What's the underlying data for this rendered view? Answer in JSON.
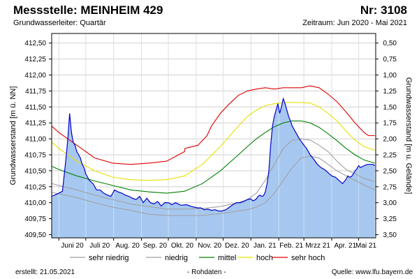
{
  "header": {
    "title_left": "Messstelle: MEINHEIM 429",
    "title_right": "Nr: 3108",
    "aquifer": "Grundwasserleiter: Quartär",
    "period": "Zeitraum: Jun 2020 - Mai 2021"
  },
  "footer": {
    "created": "erstellt:  21.05.2021",
    "raw": "- Rohdaten -",
    "source": "Quelle:  www.lfu.bayern.de"
  },
  "colors": {
    "sehr_niedrig": "#a0a0a0",
    "niedrig": "#a0a0a0",
    "mittel": "#008000",
    "hoch": "#e8e000",
    "sehr_hoch": "#e00000",
    "area_fill": "#a6c8f0",
    "measured_line": "#0000cc"
  },
  "chart_data": {
    "type": "area",
    "ylabel": "Grundwasserstand [m ü. NN]",
    "ylabel_right": "Grundwasserstand [m u. Gelände]",
    "ylim": [
      409.45,
      412.65
    ],
    "yticks": [
      "409,50",
      "409,75",
      "410,00",
      "410,25",
      "410,50",
      "410,75",
      "411,00",
      "411,25",
      "411,50",
      "411,75",
      "412,00",
      "412,25",
      "412,50"
    ],
    "yticks_values": [
      409.5,
      409.75,
      410.0,
      410.25,
      410.5,
      410.75,
      411.0,
      411.25,
      411.5,
      411.75,
      412.0,
      412.25,
      412.5
    ],
    "yticks_right": [
      "3,50",
      "3,25",
      "3,00",
      "2,75",
      "2,50",
      "2,25",
      "2,00",
      "1,75",
      "1,50",
      "1,25",
      "1,00",
      "0,75",
      "0,50"
    ],
    "yticks_right_depth": [
      3.5,
      3.25,
      3.0,
      2.75,
      2.5,
      2.25,
      2.0,
      1.75,
      1.5,
      1.25,
      1.0,
      0.75,
      0.5
    ],
    "ground_level": 413.0,
    "xlim": [
      0,
      353
    ],
    "x_unit": "days since 2020-06-01",
    "xtick_positions": [
      0,
      30,
      61,
      92,
      122,
      153,
      183,
      214,
      245,
      273,
      304,
      334
    ],
    "month_labels": [
      "Juni 20",
      "Juli 20",
      "Aug. 20",
      "Sep. 20",
      "Okt. 20",
      "Nov. 20",
      "Dez. 20",
      "Jan. 21",
      "Feb. 21",
      "Mrzz 21",
      "Apr. 21",
      "Mai 21"
    ],
    "legend_items": [
      "sehr niedrig",
      "niedrig",
      "mittel",
      "hoch",
      "sehr hoch"
    ],
    "grid": true,
    "series": [
      {
        "name": "Rohdaten",
        "x": [
          -8,
          0,
          4,
          8,
          10,
          12,
          14,
          16,
          18,
          20,
          22,
          24,
          26,
          28,
          30,
          34,
          38,
          42,
          46,
          50,
          54,
          58,
          62,
          66,
          70,
          74,
          78,
          82,
          86,
          90,
          94,
          98,
          102,
          106,
          110,
          114,
          118,
          122,
          126,
          130,
          136,
          142,
          148,
          154,
          158,
          162,
          166,
          170,
          174,
          178,
          182,
          186,
          190,
          194,
          198,
          202,
          206,
          210,
          214,
          216,
          218,
          220,
          222,
          224,
          226,
          228,
          230,
          232,
          234,
          236,
          238,
          240,
          242,
          244,
          246,
          248,
          250,
          252,
          254,
          256,
          258,
          260,
          264,
          268,
          272,
          276,
          280,
          284,
          288,
          292,
          296,
          300,
          304,
          308,
          312,
          316,
          318,
          320,
          322,
          324,
          326,
          328,
          330,
          332,
          334,
          336,
          340,
          344,
          348,
          350,
          352
        ],
        "y": [
          410.1,
          410.15,
          410.18,
          410.7,
          411.0,
          411.4,
          411.1,
          410.95,
          410.9,
          410.8,
          410.75,
          410.7,
          410.6,
          410.55,
          410.45,
          410.35,
          410.3,
          410.2,
          410.2,
          410.15,
          410.12,
          410.1,
          410.2,
          410.17,
          410.15,
          410.12,
          410.1,
          410.07,
          410.05,
          410.1,
          410.0,
          410.07,
          410.0,
          409.98,
          410.02,
          409.95,
          410.0,
          410.0,
          409.97,
          410.0,
          409.96,
          409.97,
          409.94,
          409.92,
          409.92,
          409.89,
          409.9,
          409.88,
          409.89,
          409.87,
          409.87,
          409.89,
          409.93,
          409.97,
          410.0,
          410.0,
          410.02,
          410.05,
          410.06,
          410.03,
          410.04,
          410.06,
          410.1,
          410.12,
          410.1,
          410.11,
          410.17,
          410.3,
          410.5,
          410.9,
          411.2,
          411.35,
          411.45,
          411.55,
          411.4,
          411.5,
          411.63,
          411.55,
          411.45,
          411.35,
          411.28,
          411.2,
          411.1,
          411.0,
          410.92,
          410.85,
          410.75,
          410.68,
          410.6,
          410.55,
          410.52,
          410.47,
          410.42,
          410.4,
          410.35,
          410.3,
          410.33,
          410.37,
          410.42,
          410.4,
          410.41,
          410.45,
          410.5,
          410.53,
          410.58,
          410.55,
          410.58,
          410.6,
          410.6,
          410.6,
          410.58
        ]
      },
      {
        "name": "sehr niedrig",
        "x": [
          -8,
          0,
          20,
          40,
          60,
          80,
          100,
          120,
          140,
          160,
          180,
          200,
          210,
          220,
          230,
          240,
          250,
          260,
          270,
          280,
          290,
          300,
          310,
          320,
          330,
          340,
          352
        ],
        "y": [
          410.16,
          410.14,
          410.08,
          410.0,
          409.93,
          409.88,
          409.82,
          409.8,
          409.8,
          409.8,
          409.83,
          409.87,
          409.89,
          409.93,
          410.0,
          410.15,
          410.35,
          410.55,
          410.7,
          410.73,
          410.7,
          410.6,
          410.5,
          410.42,
          410.35,
          410.28,
          410.2
        ]
      },
      {
        "name": "niedrig",
        "x": [
          -8,
          0,
          20,
          40,
          60,
          80,
          100,
          120,
          140,
          160,
          180,
          200,
          210,
          220,
          230,
          240,
          250,
          260,
          270,
          280,
          290,
          300,
          310,
          320,
          330,
          340,
          352
        ],
        "y": [
          410.3,
          410.27,
          410.2,
          410.12,
          410.05,
          409.98,
          409.94,
          409.9,
          409.9,
          409.91,
          409.94,
          410.0,
          410.05,
          410.15,
          410.35,
          410.6,
          410.85,
          410.98,
          411.0,
          410.98,
          410.9,
          410.8,
          410.65,
          410.52,
          410.45,
          410.38,
          410.33
        ]
      },
      {
        "name": "mittel",
        "x": [
          -8,
          0,
          20,
          40,
          60,
          80,
          100,
          120,
          140,
          160,
          180,
          200,
          210,
          220,
          230,
          240,
          250,
          260,
          270,
          280,
          290,
          300,
          310,
          320,
          330,
          340,
          352
        ],
        "y": [
          410.57,
          410.52,
          410.42,
          410.34,
          410.27,
          410.2,
          410.17,
          410.15,
          410.18,
          410.3,
          410.5,
          410.75,
          410.88,
          411.0,
          411.1,
          411.19,
          411.25,
          411.28,
          411.28,
          411.25,
          411.18,
          411.08,
          410.97,
          410.85,
          410.75,
          410.67,
          410.62
        ]
      },
      {
        "name": "hoch",
        "x": [
          -8,
          0,
          20,
          40,
          60,
          80,
          100,
          120,
          140,
          160,
          180,
          200,
          210,
          220,
          230,
          240,
          250,
          260,
          270,
          280,
          290,
          300,
          310,
          320,
          330,
          340,
          352
        ],
        "y": [
          410.95,
          410.85,
          410.65,
          410.5,
          410.4,
          410.36,
          410.35,
          410.36,
          410.42,
          410.6,
          410.88,
          411.2,
          411.35,
          411.45,
          411.52,
          411.55,
          411.57,
          411.57,
          411.57,
          411.56,
          411.5,
          411.4,
          411.28,
          411.12,
          410.98,
          410.88,
          410.82
        ]
      },
      {
        "name": "sehr hoch",
        "x": [
          -8,
          0,
          20,
          40,
          60,
          80,
          100,
          120,
          140,
          140.5,
          155,
          165,
          170,
          180,
          190,
          200,
          210,
          220,
          230,
          240,
          250,
          260,
          270,
          280,
          290,
          300,
          310,
          320,
          330,
          340,
          345,
          352
        ],
        "y": [
          411.2,
          411.1,
          410.9,
          410.7,
          410.62,
          410.6,
          410.62,
          410.65,
          410.8,
          410.85,
          410.9,
          411.05,
          411.2,
          411.4,
          411.55,
          411.68,
          411.75,
          411.78,
          411.8,
          411.78,
          411.8,
          411.8,
          411.8,
          411.83,
          411.8,
          411.7,
          411.58,
          411.42,
          411.25,
          411.1,
          411.05,
          411.05
        ]
      }
    ]
  }
}
